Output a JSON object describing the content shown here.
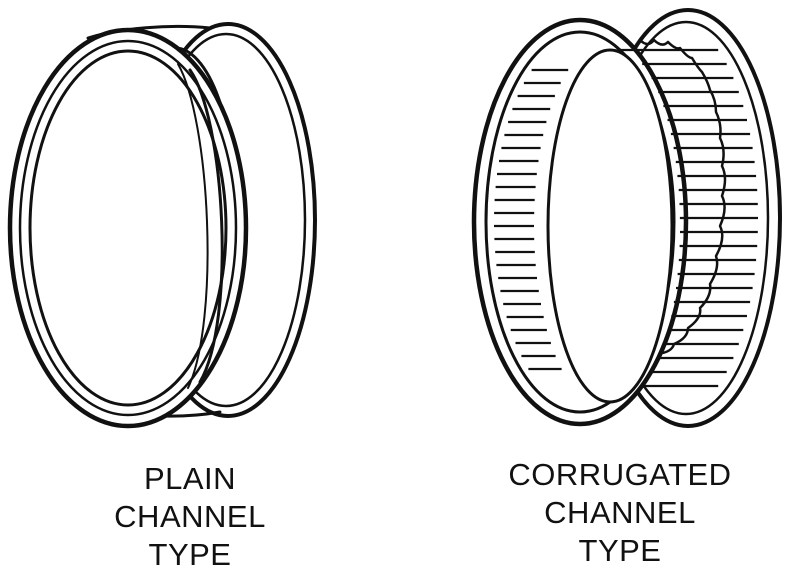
{
  "figure": {
    "items": [
      {
        "id": "plain",
        "caption_lines": [
          "PLAIN",
          "CHANNEL",
          "TYPE"
        ]
      },
      {
        "id": "corrugated",
        "caption_lines": [
          "CORRUGATED",
          "CHANNEL",
          "TYPE"
        ]
      }
    ]
  },
  "colors": {
    "ink": "#111111",
    "background": "#ffffff"
  }
}
